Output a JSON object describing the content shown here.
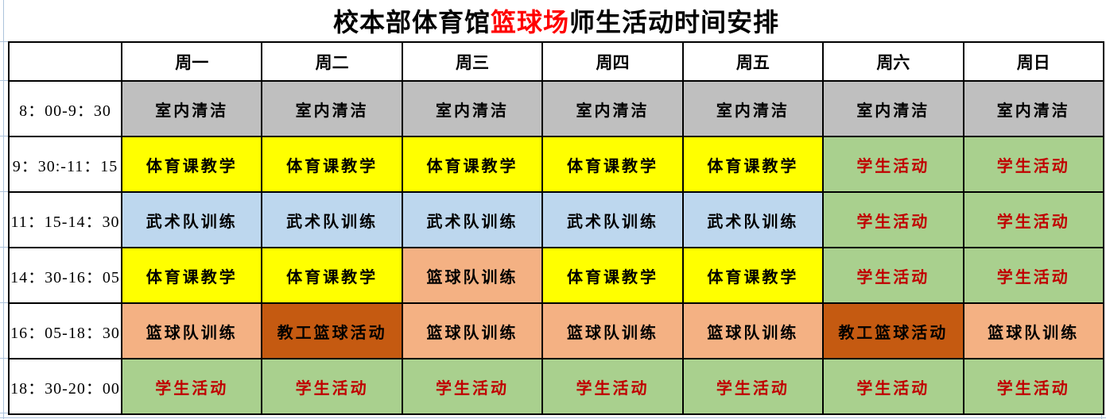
{
  "title": {
    "prefix": "校本部体育馆",
    "highlight": "篮球场",
    "suffix": "师生活动时间安排",
    "highlight_color": "#ff0000"
  },
  "colors": {
    "border": "#000000",
    "background": "#ffffff",
    "gridline": "#adc3dc"
  },
  "styles": {
    "cleaning": {
      "bg": "#bfbfbf",
      "fg": "#000000"
    },
    "pe": {
      "bg": "#ffff00",
      "fg": "#000000"
    },
    "wushu": {
      "bg": "#bdd7ee",
      "fg": "#000000"
    },
    "basketball": {
      "bg": "#f4b183",
      "fg": "#000000"
    },
    "staff": {
      "bg": "#c55a11",
      "fg": "#000000"
    },
    "student": {
      "bg": "#a9d08e",
      "fg": "#c00000"
    }
  },
  "table": {
    "day_headers": [
      "周一",
      "周二",
      "周三",
      "周四",
      "周五",
      "周六",
      "周日"
    ],
    "rows": [
      {
        "time": "8：00-9：30",
        "cells": [
          {
            "text": "室内清洁",
            "style": "cleaning"
          },
          {
            "text": "室内清洁",
            "style": "cleaning"
          },
          {
            "text": "室内清洁",
            "style": "cleaning"
          },
          {
            "text": "室内清洁",
            "style": "cleaning"
          },
          {
            "text": "室内清洁",
            "style": "cleaning"
          },
          {
            "text": "室内清洁",
            "style": "cleaning"
          },
          {
            "text": "室内清洁",
            "style": "cleaning"
          }
        ]
      },
      {
        "time": "9：30:-11：15",
        "cells": [
          {
            "text": "体育课教学",
            "style": "pe"
          },
          {
            "text": "体育课教学",
            "style": "pe"
          },
          {
            "text": "体育课教学",
            "style": "pe"
          },
          {
            "text": "体育课教学",
            "style": "pe"
          },
          {
            "text": "体育课教学",
            "style": "pe"
          },
          {
            "text": "学生活动",
            "style": "student"
          },
          {
            "text": "学生活动",
            "style": "student"
          }
        ]
      },
      {
        "time": "11：15-14：30",
        "cells": [
          {
            "text": "武术队训练",
            "style": "wushu"
          },
          {
            "text": "武术队训练",
            "style": "wushu"
          },
          {
            "text": "武术队训练",
            "style": "wushu"
          },
          {
            "text": "武术队训练",
            "style": "wushu"
          },
          {
            "text": "武术队训练",
            "style": "wushu"
          },
          {
            "text": "学生活动",
            "style": "student"
          },
          {
            "text": "学生活动",
            "style": "student"
          }
        ]
      },
      {
        "time": "14：30-16：05",
        "cells": [
          {
            "text": "体育课教学",
            "style": "pe"
          },
          {
            "text": "体育课教学",
            "style": "pe"
          },
          {
            "text": "篮球队训练",
            "style": "basketball"
          },
          {
            "text": "体育课教学",
            "style": "pe"
          },
          {
            "text": "体育课教学",
            "style": "pe"
          },
          {
            "text": "学生活动",
            "style": "student"
          },
          {
            "text": "学生活动",
            "style": "student"
          }
        ]
      },
      {
        "time": "16：05-18：30",
        "cells": [
          {
            "text": "篮球队训练",
            "style": "basketball"
          },
          {
            "text": "教工篮球活动",
            "style": "staff"
          },
          {
            "text": "篮球队训练",
            "style": "basketball"
          },
          {
            "text": "篮球队训练",
            "style": "basketball"
          },
          {
            "text": "篮球队训练",
            "style": "basketball"
          },
          {
            "text": "教工篮球活动",
            "style": "staff"
          },
          {
            "text": "篮球队训练",
            "style": "basketball"
          }
        ]
      },
      {
        "time": "18：30-20：00",
        "cells": [
          {
            "text": "学生活动",
            "style": "student"
          },
          {
            "text": "学生活动",
            "style": "student"
          },
          {
            "text": "学生活动",
            "style": "student"
          },
          {
            "text": "学生活动",
            "style": "student"
          },
          {
            "text": "学生活动",
            "style": "student"
          },
          {
            "text": "学生活动",
            "style": "student"
          },
          {
            "text": "学生活动",
            "style": "student"
          }
        ]
      }
    ]
  }
}
